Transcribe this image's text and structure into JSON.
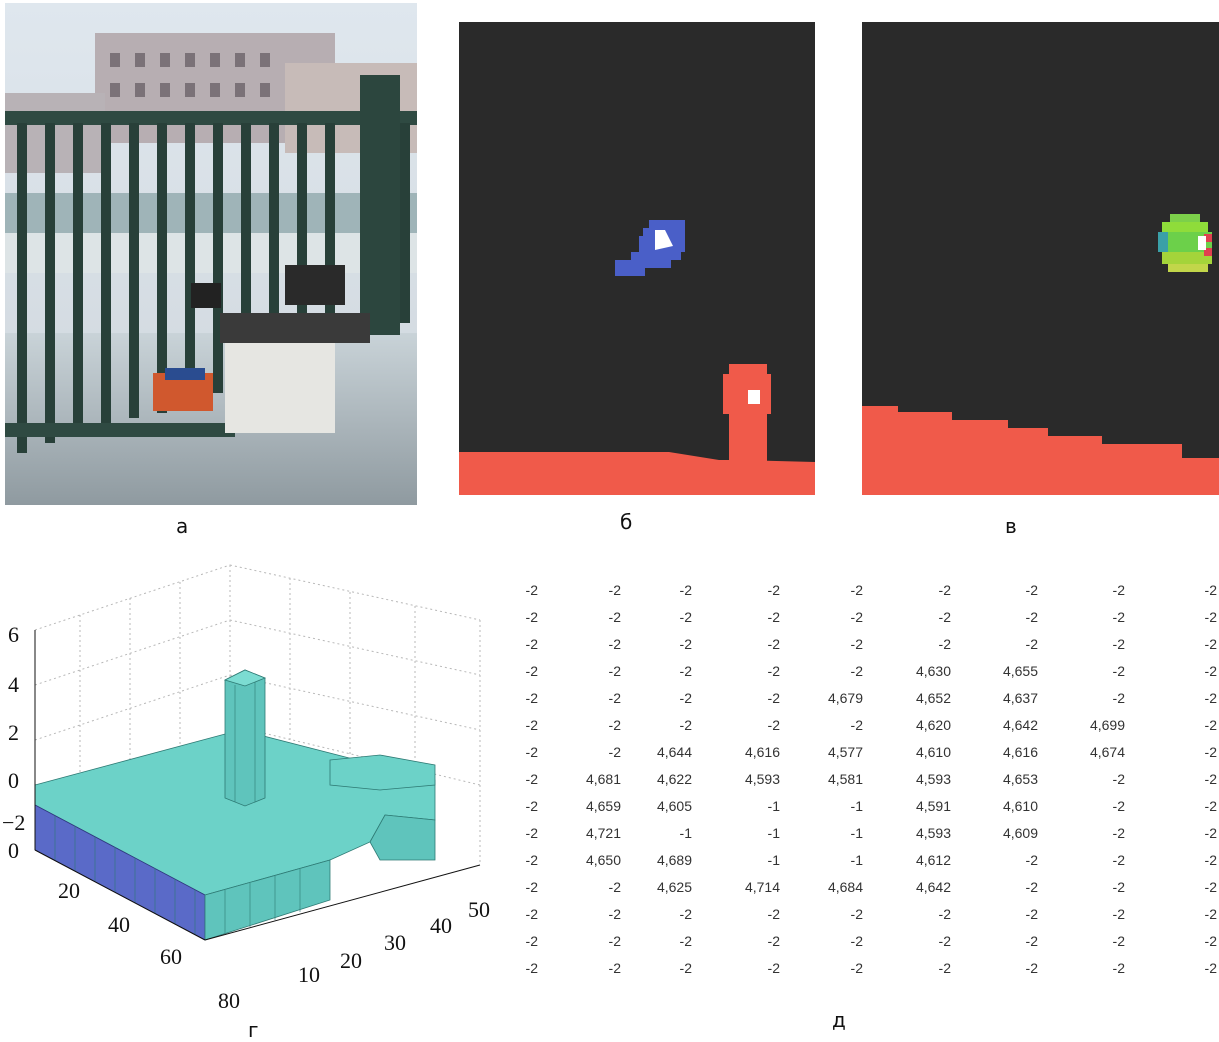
{
  "captions": {
    "a": "а",
    "b": "б",
    "c": "в",
    "d": "г",
    "e": "д"
  },
  "plot3d": {
    "z_ticks": [
      "6",
      "4",
      "2",
      "0",
      "−2"
    ],
    "x_ticks": [
      "0",
      "20",
      "40",
      "60",
      "80"
    ],
    "y_ticks": [
      "10",
      "20",
      "30",
      "40",
      "50"
    ]
  },
  "table": {
    "rows": [
      [
        "-2",
        "-2",
        "-2",
        "-2",
        "-2",
        "-2",
        "-2",
        "-2",
        "-2"
      ],
      [
        "-2",
        "-2",
        "-2",
        "-2",
        "-2",
        "-2",
        "-2",
        "-2",
        "-2"
      ],
      [
        "-2",
        "-2",
        "-2",
        "-2",
        "-2",
        "-2",
        "-2",
        "-2",
        "-2"
      ],
      [
        "-2",
        "-2",
        "-2",
        "-2",
        "-2",
        "4,630",
        "4,655",
        "-2",
        "-2"
      ],
      [
        "-2",
        "-2",
        "-2",
        "-2",
        "4,679",
        "4,652",
        "4,637",
        "-2",
        "-2"
      ],
      [
        "-2",
        "-2",
        "-2",
        "-2",
        "-2",
        "4,620",
        "4,642",
        "4,699",
        "-2"
      ],
      [
        "-2",
        "-2",
        "4,644",
        "4,616",
        "4,577",
        "4,610",
        "4,616",
        "4,674",
        "-2"
      ],
      [
        "-2",
        "4,681",
        "4,622",
        "4,593",
        "4,581",
        "4,593",
        "4,653",
        "-2",
        "-2"
      ],
      [
        "-2",
        "4,659",
        "4,605",
        "-1",
        "-1",
        "4,591",
        "4,610",
        "-2",
        "-2"
      ],
      [
        "-2",
        "4,721",
        "-1",
        "-1",
        "-1",
        "4,593",
        "4,609",
        "-2",
        "-2"
      ],
      [
        "-2",
        "4,650",
        "4,689",
        "-1",
        "-1",
        "4,612",
        "-2",
        "-2",
        "-2"
      ],
      [
        "-2",
        "-2",
        "4,625",
        "4,714",
        "4,684",
        "4,642",
        "-2",
        "-2",
        "-2"
      ],
      [
        "-2",
        "-2",
        "-2",
        "-2",
        "-2",
        "-2",
        "-2",
        "-2",
        "-2"
      ],
      [
        "-2",
        "-2",
        "-2",
        "-2",
        "-2",
        "-2",
        "-2",
        "-2",
        "-2"
      ],
      [
        "-2",
        "-2",
        "-2",
        "-2",
        "-2",
        "-2",
        "-2",
        "-2",
        "-2"
      ]
    ]
  },
  "colors": {
    "panel_bg": "#2a2a2a",
    "red_region": "#f05a4a",
    "blue_blob": "#4a5fc8",
    "green_blob": "#6cd04a",
    "bar_face": "#66d0c8",
    "bar_side": "#5a6ac8"
  }
}
